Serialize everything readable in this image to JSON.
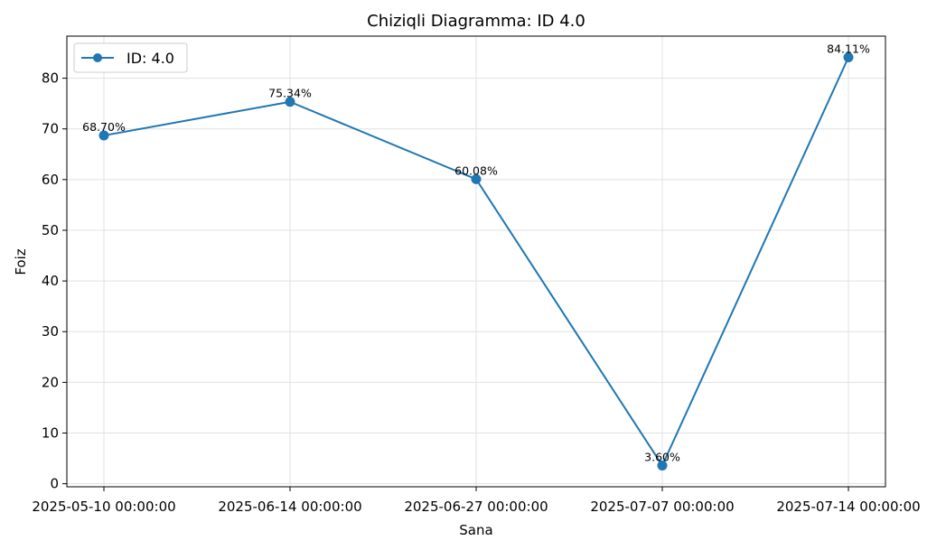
{
  "chart_data": {
    "type": "line",
    "title": "Chiziqli Diagramma: ID 4.0",
    "xlabel": "Sana",
    "ylabel": "Foiz",
    "categories": [
      "2025-05-10 00:00:00",
      "2025-06-14 00:00:00",
      "2025-06-27 00:00:00",
      "2025-07-07 00:00:00",
      "2025-07-14 00:00:00"
    ],
    "series": [
      {
        "name": "ID: 4.0",
        "values": [
          68.7,
          75.34,
          60.08,
          3.6,
          84.11
        ],
        "labels": [
          "68.70%",
          "75.34%",
          "60.08%",
          "3.60%",
          "84.11%"
        ],
        "color": "#1f77b4"
      }
    ],
    "ylim": [
      -0.6,
      88.3
    ],
    "yticks": [
      0,
      10,
      20,
      30,
      40,
      50,
      60,
      70,
      80
    ],
    "grid": true,
    "legend_position": "top-left"
  }
}
